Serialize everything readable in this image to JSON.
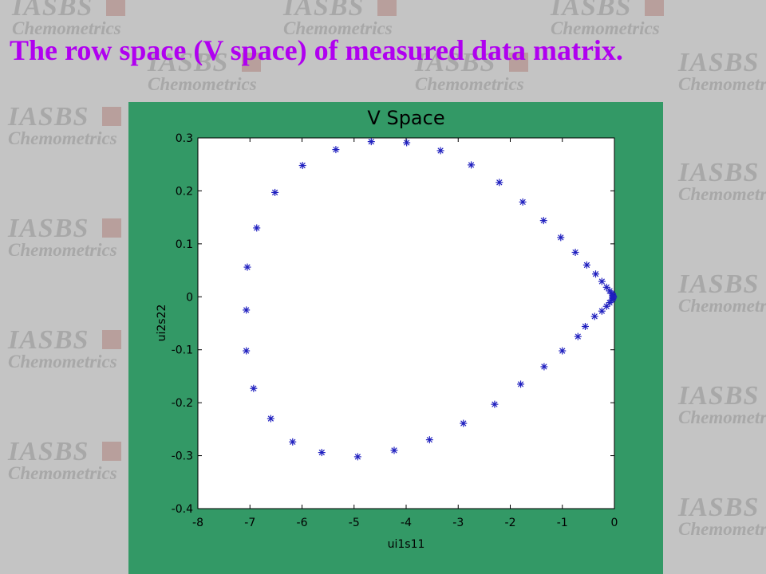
{
  "slide": {
    "title": "The row space (V space) of measured data matrix."
  },
  "watermark": {
    "line1": "IASBS",
    "line2": "Chemometrics"
  },
  "colors": {
    "title": "#b000f0",
    "figure_background": "#339966",
    "plot_background": "#ffffff",
    "marker": "#1f1fbf"
  },
  "chart_data": {
    "type": "scatter",
    "title": "V Space",
    "xlabel": "ui1s11",
    "ylabel": "ui2s22",
    "xlim": [
      -8,
      0
    ],
    "ylim": [
      -0.4,
      0.3
    ],
    "xticks": [
      -8,
      -7,
      -6,
      -5,
      -4,
      -3,
      -2,
      -1,
      0
    ],
    "yticks": [
      -0.4,
      -0.3,
      -0.2,
      -0.1,
      0,
      0.1,
      0.2,
      0.3
    ],
    "xtick_labels": [
      "-8",
      "-7",
      "-6",
      "-5",
      "-4",
      "-3",
      "-2",
      "-1",
      "0"
    ],
    "ytick_labels": [
      "-0.4",
      "-0.3",
      "-0.2",
      "-0.1",
      "0",
      "0.1",
      "0.2",
      "0.3"
    ],
    "grid": false,
    "marker": "asterisk",
    "points": [
      [
        -7.05,
        0.056
      ],
      [
        -6.87,
        0.13
      ],
      [
        -6.52,
        0.197
      ],
      [
        -5.99,
        0.248
      ],
      [
        -5.35,
        0.278
      ],
      [
        -4.67,
        0.293
      ],
      [
        -3.99,
        0.291
      ],
      [
        -3.34,
        0.276
      ],
      [
        -2.75,
        0.249
      ],
      [
        -2.21,
        0.216
      ],
      [
        -1.76,
        0.179
      ],
      [
        -1.36,
        0.144
      ],
      [
        -1.03,
        0.112
      ],
      [
        -0.75,
        0.084
      ],
      [
        -0.53,
        0.06
      ],
      [
        -0.36,
        0.043
      ],
      [
        -0.24,
        0.029
      ],
      [
        -0.15,
        0.018
      ],
      [
        -0.09,
        0.011
      ],
      [
        -0.05,
        0.006
      ],
      [
        -0.03,
        0.003
      ],
      [
        -0.02,
        0.001
      ],
      [
        -0.02,
        -0.001
      ],
      [
        -0.03,
        -0.003
      ],
      [
        -0.05,
        -0.006
      ],
      [
        -0.09,
        -0.011
      ],
      [
        -0.15,
        -0.018
      ],
      [
        -0.24,
        -0.027
      ],
      [
        -0.38,
        -0.037
      ],
      [
        -0.56,
        -0.056
      ],
      [
        -0.7,
        -0.075
      ],
      [
        -1.0,
        -0.102
      ],
      [
        -1.35,
        -0.132
      ],
      [
        -1.8,
        -0.165
      ],
      [
        -2.3,
        -0.203
      ],
      [
        -2.9,
        -0.239
      ],
      [
        -3.55,
        -0.27
      ],
      [
        -4.23,
        -0.29
      ],
      [
        -4.93,
        -0.302
      ],
      [
        -5.62,
        -0.294
      ],
      [
        -6.18,
        -0.274
      ],
      [
        -6.6,
        -0.23
      ],
      [
        -6.93,
        -0.173
      ],
      [
        -7.07,
        -0.102
      ],
      [
        -7.07,
        -0.025
      ]
    ]
  }
}
